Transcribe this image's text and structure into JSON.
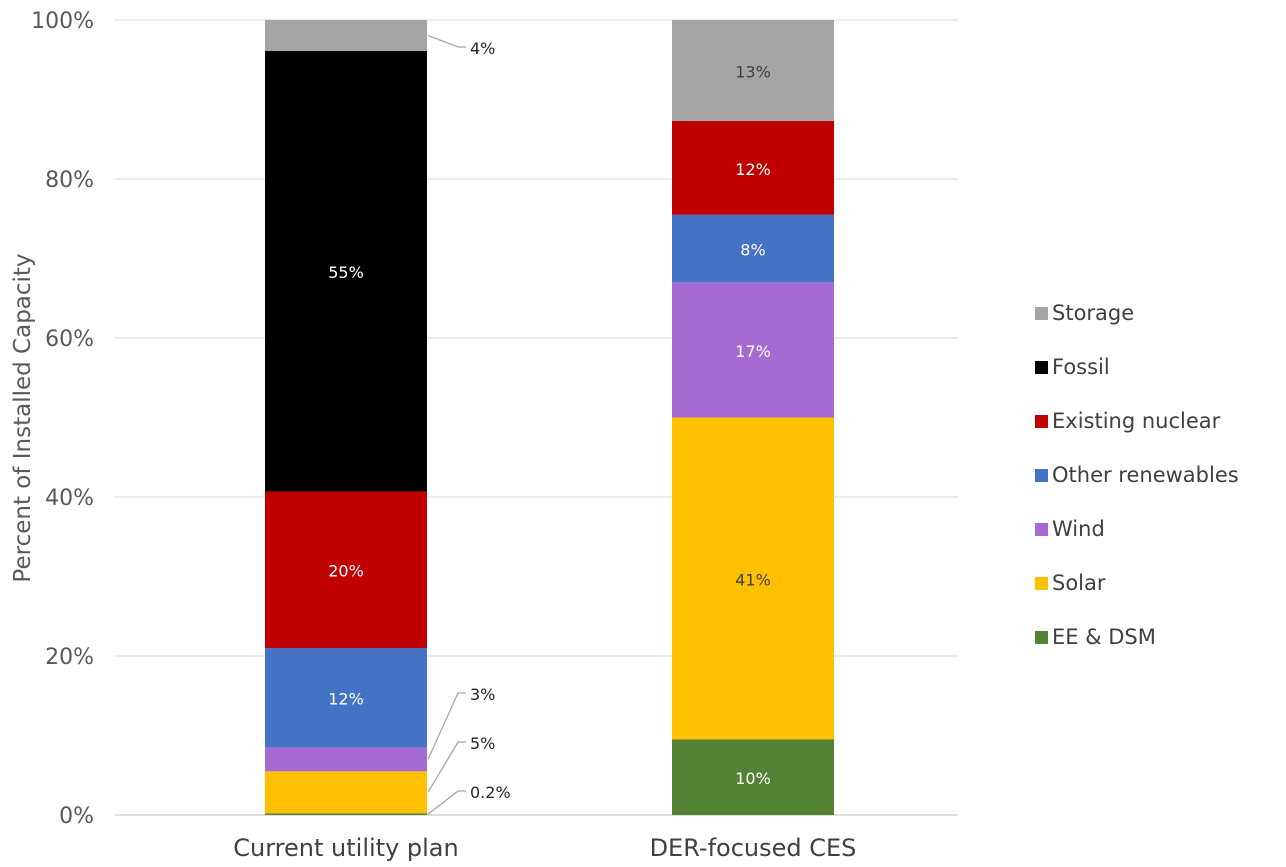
{
  "chart_data": {
    "type": "bar",
    "stacked": true,
    "normalized": true,
    "title": "",
    "xlabel": "",
    "ylabel": "Percent of Installed Capacity",
    "ylim": [
      0,
      100
    ],
    "yticks": [
      "0%",
      "20%",
      "40%",
      "60%",
      "80%",
      "100%"
    ],
    "grid": true,
    "legend_position": "right",
    "categories": [
      "Current utility plan",
      "DER-focused CES"
    ],
    "series": [
      {
        "name": "EE & DSM",
        "color": "#548235",
        "values": [
          0.2,
          9.5
        ],
        "labels": [
          "0.2%",
          "10%"
        ]
      },
      {
        "name": "Solar",
        "color": "#FFC000",
        "values": [
          5.3,
          40.5
        ],
        "labels": [
          "5%",
          "41%"
        ]
      },
      {
        "name": "Wind",
        "color": "#A66BD3",
        "values": [
          3.0,
          17.0
        ],
        "labels": [
          "3%",
          "17%"
        ]
      },
      {
        "name": "Other renewables",
        "color": "#4472C4",
        "values": [
          12.5,
          8.5
        ],
        "labels": [
          "12%",
          "8%"
        ]
      },
      {
        "name": "Existing nuclear",
        "color": "#C00000",
        "values": [
          19.7,
          11.8
        ],
        "labels": [
          "20%",
          "12%"
        ]
      },
      {
        "name": "Fossil",
        "color": "#000000",
        "values": [
          55.4,
          0
        ],
        "labels": [
          "55%",
          ""
        ]
      },
      {
        "name": "Storage",
        "color": "#A5A5A5",
        "values": [
          3.9,
          12.7
        ],
        "labels": [
          "4%",
          "13%"
        ]
      }
    ]
  }
}
